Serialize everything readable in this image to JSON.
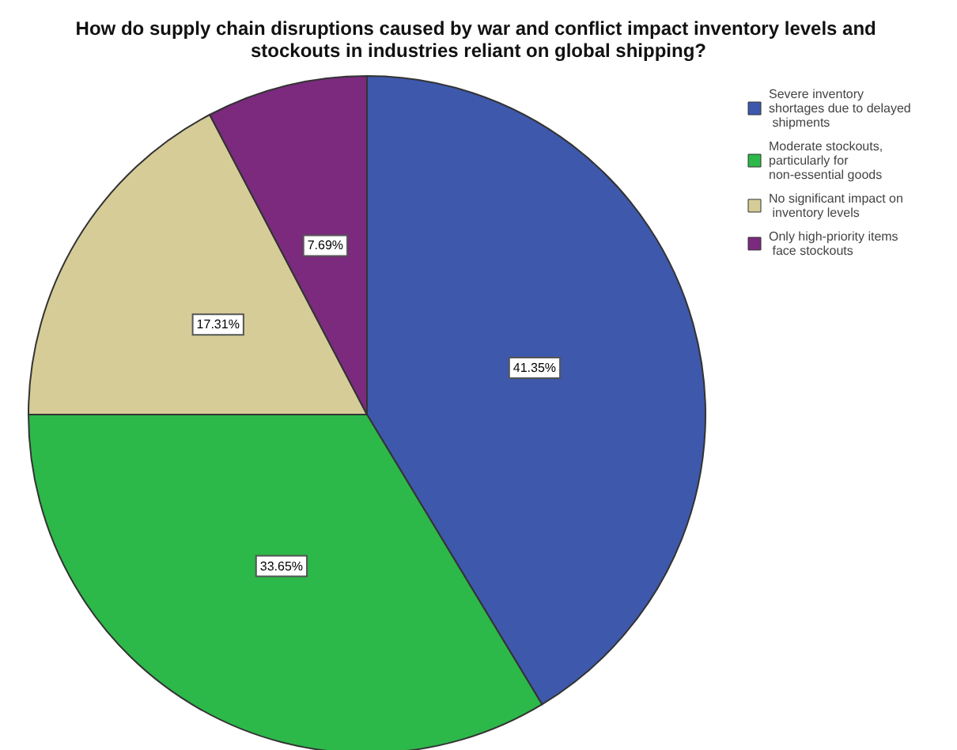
{
  "chart_data": {
    "type": "pie",
    "title": "How do supply chain disruptions caused by war and conflict impact inventory levels and stockouts in industries reliant on global shipping?",
    "categories": [
      "Severe inventory shortages due to delayed shipments",
      "Moderate stockouts, particularly for non-essential goods",
      "No significant impact on inventory levels",
      "Only high-priority items face stockouts"
    ],
    "values": [
      41.35,
      33.65,
      17.31,
      7.69
    ],
    "colors": [
      "#3e58ac",
      "#2db84a",
      "#d6cc98",
      "#7b2a7e"
    ],
    "value_labels": [
      "41.35%",
      "33.65%",
      "17.31%",
      "7.69%"
    ],
    "legend": "top right"
  }
}
